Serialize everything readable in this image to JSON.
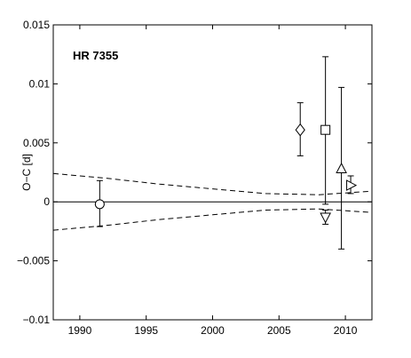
{
  "chart_data": {
    "type": "scatter",
    "title": "HR 7355",
    "xlabel": "",
    "ylabel": "O−C   [d]",
    "xlim": [
      1988,
      2012
    ],
    "ylim": [
      -0.01,
      0.015
    ],
    "grid": false,
    "x_ticks": [
      1990,
      1995,
      2000,
      2005,
      2010
    ],
    "x_tick_labels": [
      "1990",
      "1995",
      "2000",
      "2005",
      "2010"
    ],
    "y_ticks": [
      -0.01,
      -0.005,
      0,
      0.005,
      0.01,
      0.015
    ],
    "y_tick_labels": [
      "−0.01",
      "−0.005",
      "0",
      "0.005",
      "0.01",
      "0.015"
    ],
    "points": [
      {
        "marker": "circle",
        "x": 1991.5,
        "y": -0.0002,
        "err_low": -0.0021,
        "err_high": 0.0018
      },
      {
        "marker": "diamond",
        "x": 2006.6,
        "y": 0.0061,
        "err_low": 0.0039,
        "err_high": 0.0084
      },
      {
        "marker": "square",
        "x": 2008.5,
        "y": 0.0061,
        "err_low": -0.0002,
        "err_high": 0.0123
      },
      {
        "marker": "triangle-down",
        "x": 2008.5,
        "y": -0.0013,
        "err_low": -0.0019,
        "err_high": -0.0007
      },
      {
        "marker": "triangle-up",
        "x": 2009.7,
        "y": 0.0028,
        "err_low": -0.004,
        "err_high": 0.0097
      },
      {
        "marker": "triangle-right",
        "x": 2010.4,
        "y": 0.0014,
        "err_low": 0.0007,
        "err_high": 0.0022
      }
    ],
    "reference_line": {
      "y": 0,
      "style": "solid"
    },
    "envelope": {
      "style": "dashed",
      "x": [
        1988,
        1992,
        1996,
        2000,
        2004,
        2008,
        2012
      ],
      "upper": [
        0.0024,
        0.002,
        0.0015,
        0.0011,
        0.0007,
        0.0006,
        0.0009
      ],
      "lower": [
        -0.0024,
        -0.002,
        -0.0015,
        -0.0011,
        -0.0007,
        -0.0006,
        -0.0009
      ]
    }
  }
}
